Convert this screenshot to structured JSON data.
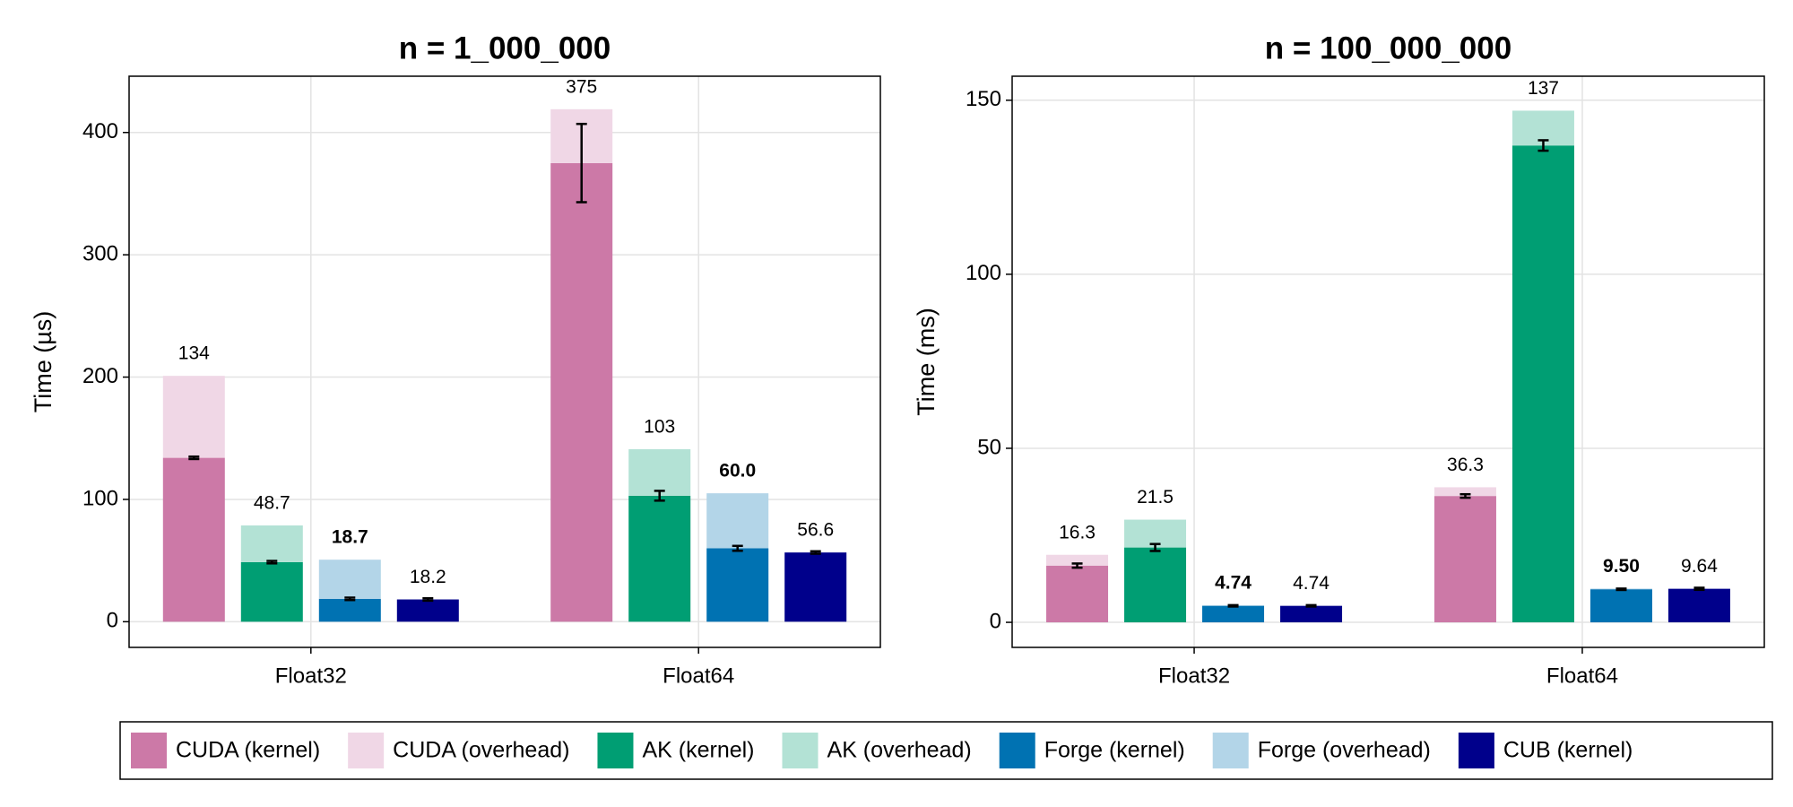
{
  "chart_data": [
    {
      "type": "bar",
      "title": "n = 1_000_000",
      "ylabel": "Time (µs)",
      "categories": [
        "Float32",
        "Float64"
      ],
      "ylim": [
        -21,
        446
      ],
      "yticks": [
        0,
        100,
        200,
        300,
        400
      ],
      "grid": true,
      "series": [
        {
          "name": "CUDA (kernel)",
          "color": "#cc79a7",
          "values": [
            134,
            375
          ],
          "errors": [
            1,
            32
          ]
        },
        {
          "name": "CUDA (overhead)",
          "color": "#f0d7e6",
          "values": [
            67,
            44
          ],
          "stacked_on_previous": true
        },
        {
          "name": "AK (kernel)",
          "color": "#009e73",
          "values": [
            48.7,
            103
          ],
          "errors": [
            1,
            4
          ]
        },
        {
          "name": "AK (overhead)",
          "color": "#b3e2d5",
          "values": [
            30,
            38
          ],
          "stacked_on_previous": true
        },
        {
          "name": "Forge (kernel)",
          "color": "#0072b2",
          "values": [
            18.7,
            60
          ],
          "value_labels": [
            "18.7",
            "60.0"
          ],
          "errors": [
            1,
            2
          ],
          "bold_labels": true
        },
        {
          "name": "Forge (overhead)",
          "color": "#b3d5e8",
          "values": [
            32,
            45
          ],
          "stacked_on_previous": true
        },
        {
          "name": "CUB (kernel)",
          "color": "#00008b",
          "values": [
            18.2,
            56.6
          ],
          "errors": [
            1,
            1
          ]
        }
      ]
    },
    {
      "type": "bar",
      "title": "n = 100_000_000",
      "ylabel": "Time (ms)",
      "categories": [
        "Float32",
        "Float64"
      ],
      "ylim": [
        -7.2,
        156.9
      ],
      "yticks": [
        0,
        50,
        100,
        150
      ],
      "grid": true,
      "series": [
        {
          "name": "CUDA (kernel)",
          "color": "#cc79a7",
          "values": [
            16.3,
            36.3
          ],
          "errors": [
            0.6,
            0.5
          ]
        },
        {
          "name": "CUDA (overhead)",
          "color": "#f0d7e6",
          "values": [
            3.1,
            2.5
          ],
          "stacked_on_previous": true
        },
        {
          "name": "AK (kernel)",
          "color": "#009e73",
          "values": [
            21.5,
            137
          ],
          "errors": [
            1,
            1.5
          ]
        },
        {
          "name": "AK (overhead)",
          "color": "#b3e2d5",
          "values": [
            8,
            10
          ],
          "stacked_on_previous": true
        },
        {
          "name": "Forge (kernel)",
          "color": "#0072b2",
          "values": [
            4.74,
            9.5
          ],
          "value_labels": [
            "4.74",
            "9.50"
          ],
          "errors": [
            0.2,
            0.2
          ],
          "bold_labels": true
        },
        {
          "name": "Forge (overhead)",
          "color": "#b3d5e8",
          "values": [
            0.2,
            0.2
          ],
          "stacked_on_previous": true
        },
        {
          "name": "CUB (kernel)",
          "color": "#00008b",
          "values": [
            4.74,
            9.64
          ],
          "errors": [
            0.2,
            0.3
          ]
        }
      ]
    }
  ]
}
